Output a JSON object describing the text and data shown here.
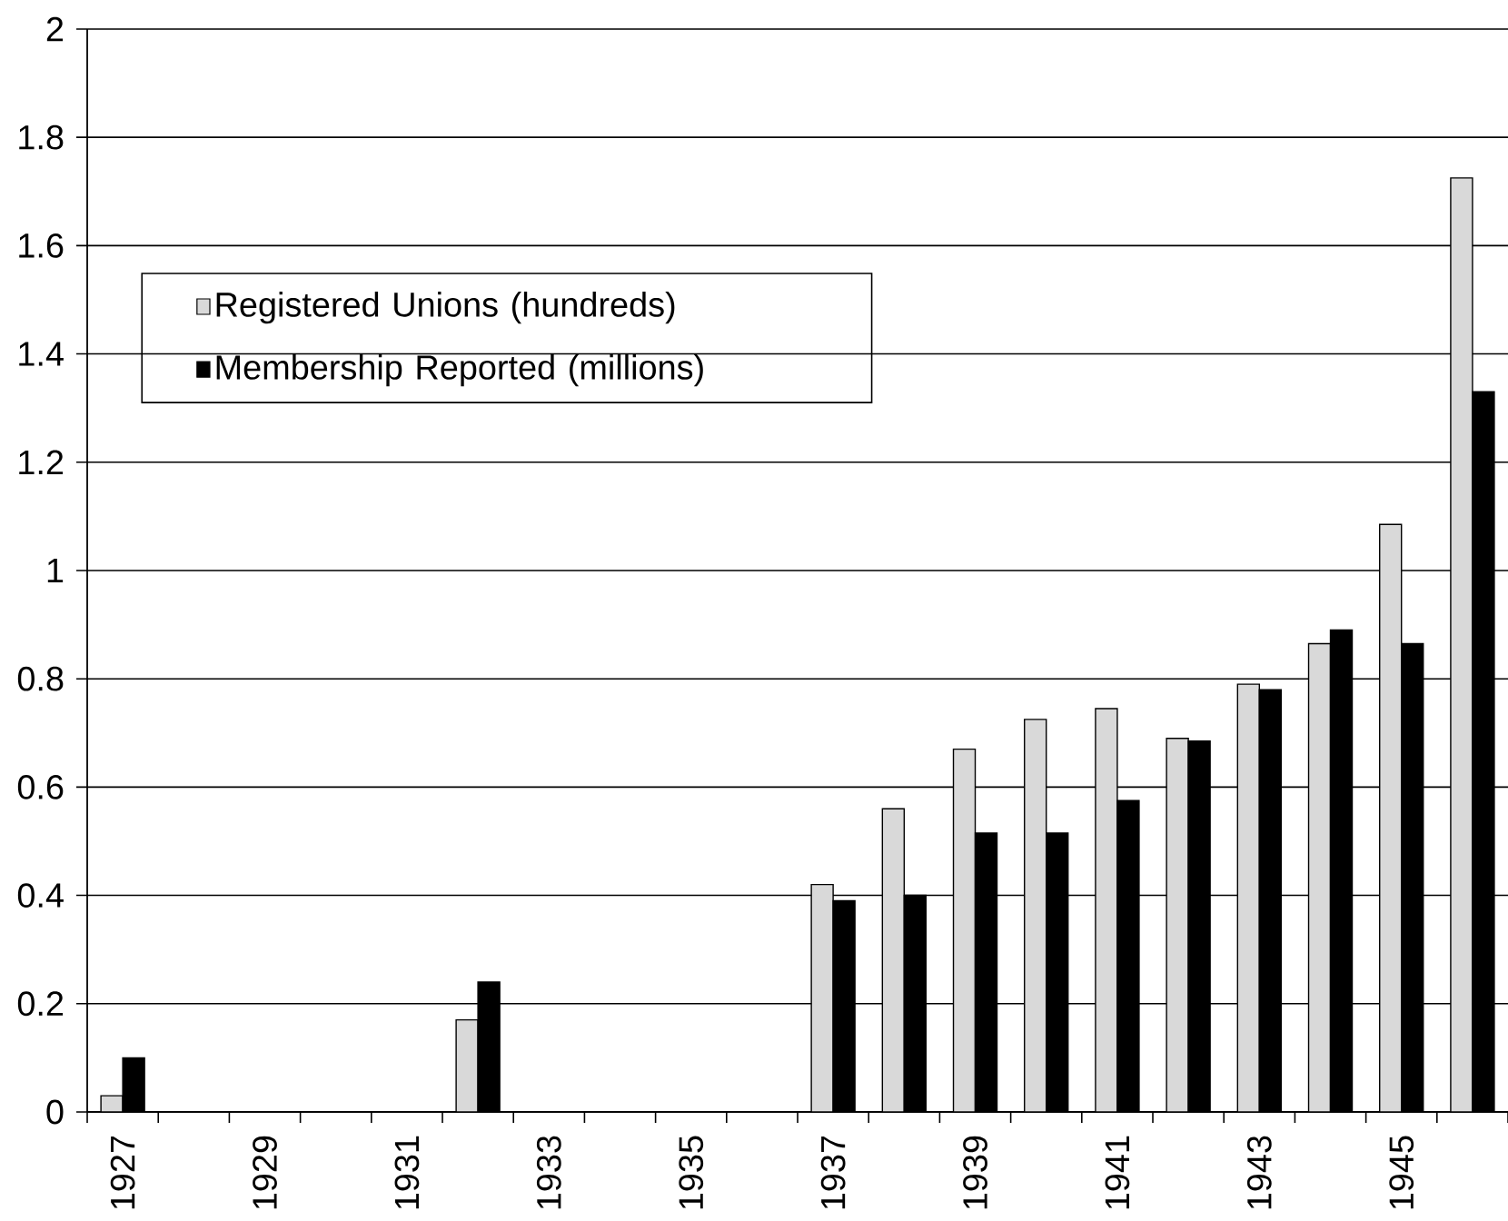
{
  "chart_data": {
    "type": "bar",
    "categories": [
      "1927",
      null,
      "1929",
      null,
      "1931",
      null,
      "1933",
      null,
      "1935",
      null,
      "1937",
      null,
      "1939",
      null,
      "1941",
      null,
      "1943",
      null,
      "1945",
      null
    ],
    "series": [
      {
        "name": "Registered Unions (hundreds)",
        "color": "#d9d9d9",
        "values": [
          0.03,
          null,
          null,
          null,
          null,
          0.17,
          null,
          null,
          null,
          null,
          0.42,
          0.56,
          0.67,
          0.725,
          0.745,
          0.69,
          0.79,
          0.865,
          1.085,
          1.725
        ]
      },
      {
        "name": "Membership Reported (millions)",
        "color": "#000000",
        "values": [
          0.1,
          null,
          null,
          null,
          null,
          0.24,
          null,
          null,
          null,
          null,
          0.39,
          0.4,
          0.515,
          0.515,
          0.575,
          0.685,
          0.78,
          0.89,
          0.865,
          1.33
        ]
      }
    ],
    "ylim": [
      0,
      2
    ],
    "yticks": [
      0,
      0.2,
      0.4,
      0.6,
      0.8,
      1,
      1.2,
      1.4,
      1.6,
      1.8,
      2
    ],
    "grid": "y",
    "legend": "top left"
  }
}
